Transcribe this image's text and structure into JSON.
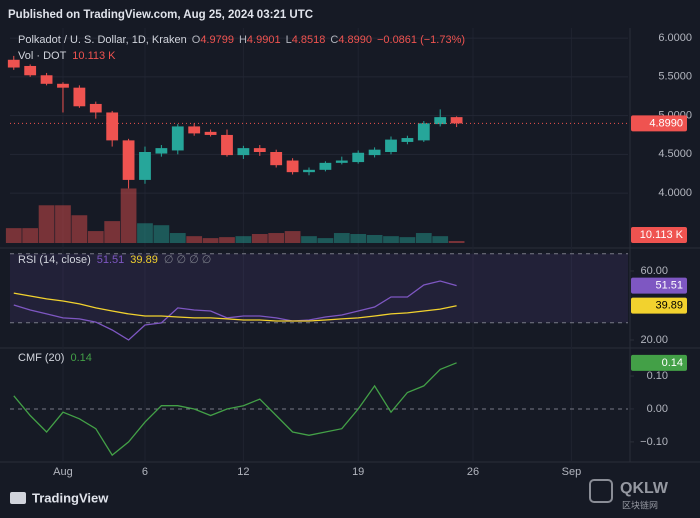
{
  "chart_data": {
    "type": "candlestick",
    "header": "Published on TradingView.com, Aug 25, 2024 03:21 UTC",
    "title": "Polkadot / U. S. Dollar, 1D, Kraken",
    "ohlc_prefixes": [
      "O",
      "H",
      "L",
      "C"
    ],
    "change_label": "−0.0861 (−1.73%)",
    "x": [
      -2,
      -1,
      0,
      1,
      2,
      3,
      4,
      5,
      6,
      7,
      8,
      9,
      10,
      11,
      12,
      13,
      14,
      15,
      16,
      17,
      18,
      19,
      20,
      21,
      22,
      23,
      24,
      25
    ],
    "xlim": [
      -2.23,
      35.45
    ],
    "xticks": [
      {
        "value": 1,
        "label": "Aug"
      },
      6,
      12,
      19,
      26,
      {
        "value": 32,
        "label": "Sep"
      }
    ],
    "open": [
      5.72,
      5.64,
      5.52,
      5.41,
      5.36,
      5.15,
      5.04,
      4.68,
      4.17,
      4.51,
      4.55,
      4.86,
      4.79,
      4.75,
      4.49,
      4.58,
      4.53,
      4.42,
      4.27,
      4.3,
      4.39,
      4.4,
      4.49,
      4.53,
      4.66,
      4.68,
      4.89,
      4.9799
    ],
    "high": [
      5.77,
      5.66,
      5.55,
      5.43,
      5.39,
      5.18,
      5.06,
      4.7,
      4.6,
      4.62,
      4.89,
      4.9,
      4.82,
      4.82,
      4.61,
      4.62,
      4.56,
      4.45,
      4.33,
      4.41,
      4.47,
      4.55,
      4.59,
      4.73,
      4.74,
      4.93,
      5.08,
      4.9901
    ],
    "low": [
      5.59,
      5.5,
      5.39,
      5.04,
      5.1,
      4.96,
      4.6,
      4.06,
      4.12,
      4.47,
      4.5,
      4.74,
      4.73,
      4.47,
      4.44,
      4.48,
      4.33,
      4.24,
      4.23,
      4.28,
      4.37,
      4.38,
      4.46,
      4.5,
      4.63,
      4.66,
      4.86,
      4.8518
    ],
    "close": [
      5.62,
      5.52,
      5.41,
      5.36,
      5.12,
      5.04,
      4.68,
      4.17,
      4.53,
      4.58,
      4.86,
      4.77,
      4.75,
      4.49,
      4.58,
      4.53,
      4.36,
      4.27,
      4.3,
      4.39,
      4.42,
      4.52,
      4.56,
      4.69,
      4.71,
      4.9,
      4.98,
      4.899
    ],
    "close_labels": [
      null,
      null,
      null,
      null,
      null,
      null,
      null,
      null,
      null,
      null,
      null,
      null,
      null,
      null,
      null,
      null,
      null,
      null,
      null,
      null,
      null,
      null,
      null,
      null,
      null,
      null,
      null,
      "4.8990"
    ],
    "up_color": "#26a69a",
    "down_color": "#ef5350",
    "ylim": [
      3.33,
      6.13
    ],
    "yticks": [
      {
        "value": 6,
        "label": "6.0000"
      },
      {
        "value": 5.5,
        "label": "5.5000"
      },
      {
        "value": 5,
        "label": "5.0000"
      },
      {
        "value": 4.5,
        "label": "4.5000"
      },
      {
        "value": 4,
        "label": "4.0000"
      }
    ],
    "grid": true,
    "price_line": true,
    "volume": {
      "name": "Vol · DOT",
      "ylim": [
        0,
        1100
      ],
      "values": [
        76,
        76,
        193,
        193,
        142,
        61,
        112,
        279,
        101,
        91,
        51,
        35,
        25,
        30,
        35,
        46,
        51,
        61,
        35,
        25,
        51,
        46,
        41,
        35,
        30,
        51,
        35,
        10.113
      ],
      "value_labels": [
        null,
        null,
        null,
        null,
        null,
        null,
        null,
        null,
        null,
        null,
        null,
        null,
        null,
        null,
        null,
        null,
        null,
        null,
        null,
        null,
        null,
        null,
        null,
        null,
        null,
        null,
        null,
        "10.113 K"
      ]
    },
    "panels": [
      {
        "title": "RSI (14, close)",
        "extra": "∅ ∅ ∅ ∅",
        "ylim": [
          17.1,
          71.0
        ],
        "yticks": [
          {
            "value": 60,
            "label": "60.00"
          },
          {
            "value": 20,
            "label": "20.00"
          }
        ],
        "levels": [
          70,
          30
        ],
        "band_fill": "rgba(126,87,194,0.12)",
        "series": [
          {
            "color": "#7e57c2",
            "values": [
              40.3,
              37.4,
              35.1,
              32.8,
              32.2,
              30.4,
              25.8,
              20.0,
              28.7,
              29.9,
              38.6,
              37.4,
              36.8,
              32.8,
              33.9,
              33.9,
              32.8,
              31.0,
              31.6,
              33.3,
              34.5,
              36.8,
              39.1,
              44.9,
              44.9,
              51.9,
              54.2,
              51.51
            ]
          },
          {
            "color": "#f2d22e",
            "values": [
              47.2,
              45.5,
              43.8,
              42.6,
              40.9,
              38.6,
              36.8,
              35.1,
              33.9,
              33.9,
              33.3,
              32.8,
              32.8,
              32.2,
              31.6,
              31.6,
              31.0,
              31.0,
              31.0,
              31.6,
              32.2,
              32.8,
              33.9,
              35.1,
              35.7,
              36.8,
              37.9,
              39.89
            ]
          }
        ]
      },
      {
        "title": "CMF (20)",
        "ylim": [
          -0.155,
          0.179
        ],
        "yticks": [
          {
            "value": 0.1,
            "label": "0.10"
          },
          {
            "value": 0,
            "label": "0.00"
          },
          {
            "value": -0.1,
            "label": "−0.10"
          }
        ],
        "levels": [
          0
        ],
        "series": [
          {
            "color": "#43a047",
            "values": [
              0.04,
              -0.02,
              -0.07,
              -0.01,
              -0.03,
              -0.06,
              -0.14,
              -0.1,
              -0.04,
              0.01,
              0.01,
              0.0,
              -0.02,
              0.0,
              0.01,
              0.03,
              -0.02,
              -0.07,
              -0.08,
              -0.07,
              -0.06,
              0.0,
              0.07,
              -0.01,
              0.05,
              0.07,
              0.12,
              0.14
            ]
          }
        ]
      }
    ],
    "brand": "TradingView",
    "watermark": [
      "QKLW",
      "区块链网"
    ]
  }
}
